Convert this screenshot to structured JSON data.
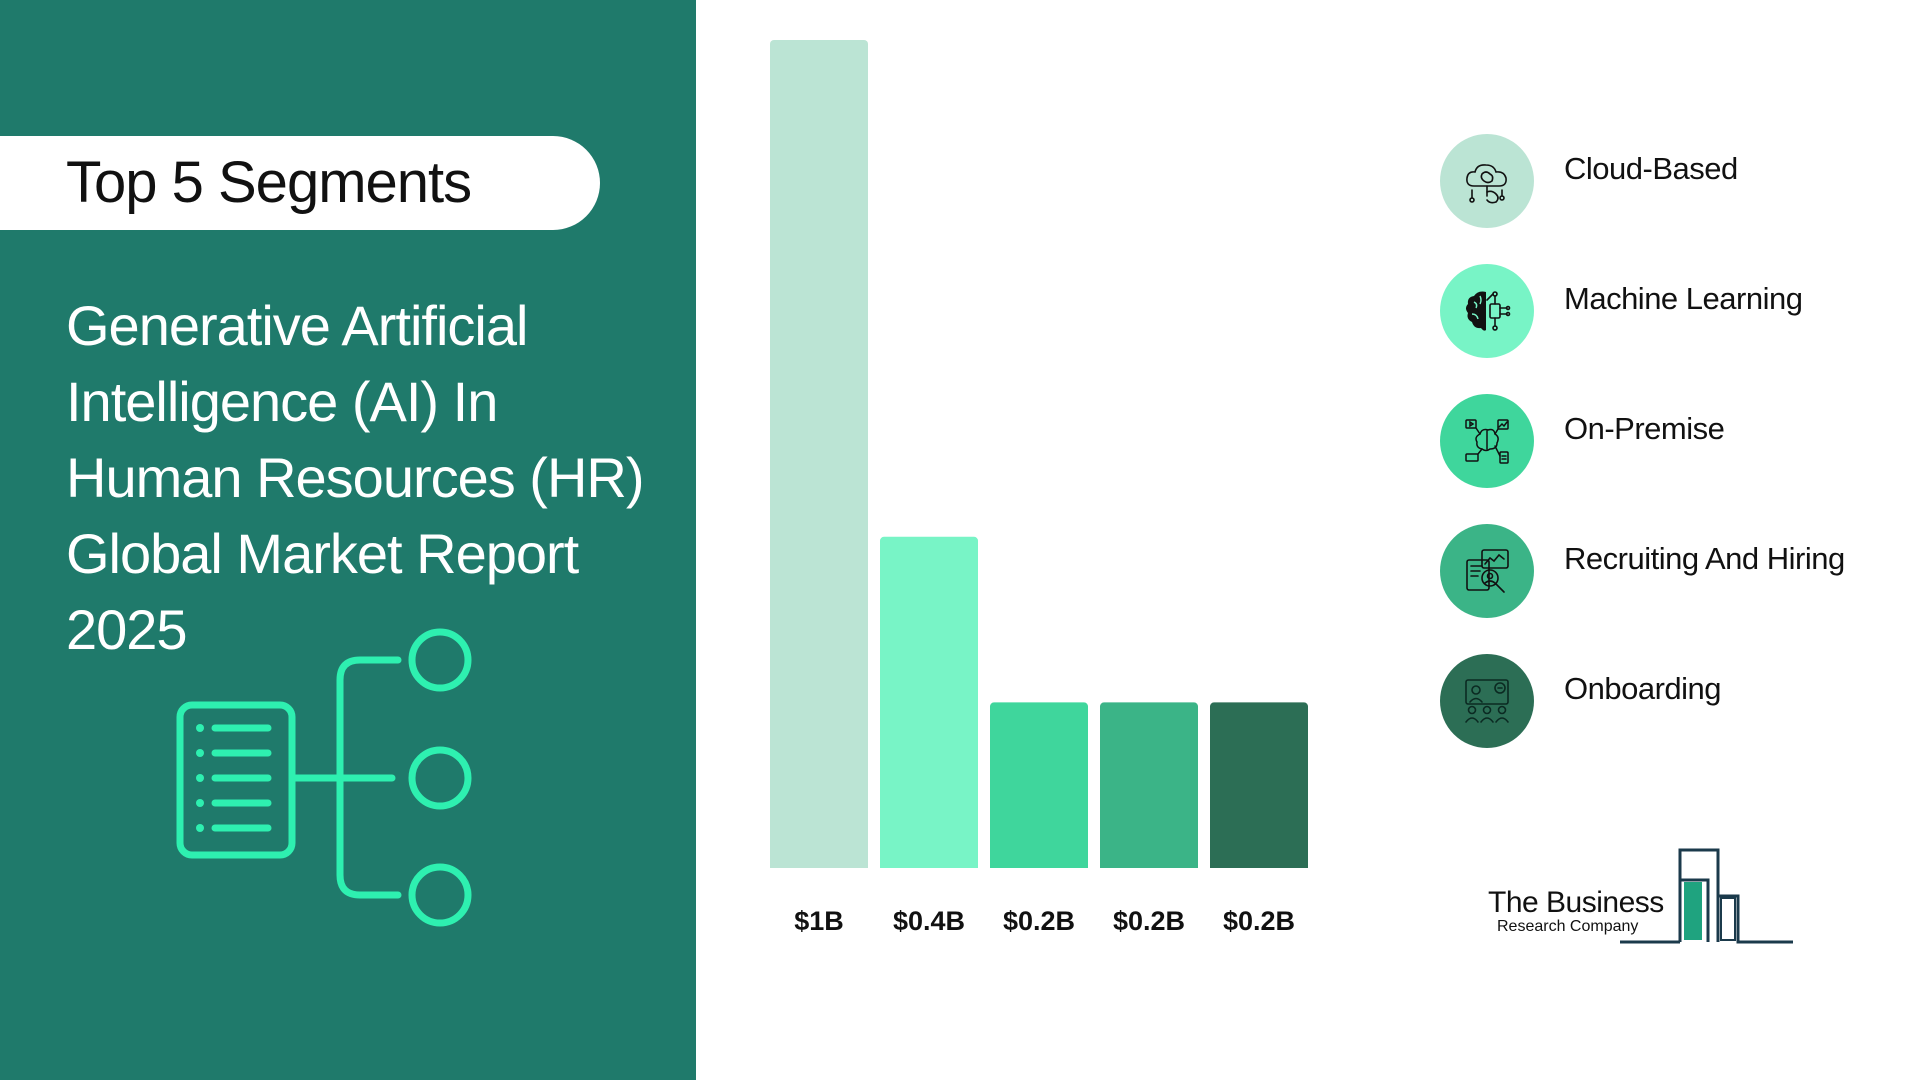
{
  "header": {
    "segments_label": "Top 5 Segments",
    "report_title_lines": [
      "Generative Artificial",
      "Intelligence (AI) In",
      "Human Resources (HR)",
      "Global Market Report",
      "2025"
    ]
  },
  "chart_data": {
    "type": "bar",
    "categories": [
      "Cloud-Based",
      "Machine Learning",
      "On-Premise",
      "Recruiting And Hiring",
      "Onboarding"
    ],
    "values": [
      1,
      0.4,
      0.2,
      0.2,
      0.2
    ],
    "data_labels": [
      "$1B",
      "$0.4B",
      "$0.2B",
      "$0.2B",
      "$0.2B"
    ],
    "colors": [
      "#bbe4d4",
      "#78f4c6",
      "#3fd69c",
      "#3bb487",
      "#2c6e55"
    ],
    "title": "",
    "xlabel": "",
    "ylabel": "",
    "ylim": [
      0,
      1
    ],
    "grid": false,
    "legend_position": "right"
  },
  "legend": [
    {
      "label": "Cloud-Based",
      "icon": "cloud-brain-icon",
      "color": "#bbe4d4"
    },
    {
      "label": "Machine Learning",
      "icon": "brain-chip-icon",
      "color": "#78f4c6"
    },
    {
      "label": "On-Premise",
      "icon": "brain-network-icon",
      "color": "#3fd69c"
    },
    {
      "label": "Recruiting And Hiring",
      "icon": "resume-search-icon",
      "color": "#3bb487"
    },
    {
      "label": "Onboarding",
      "icon": "team-presentation-icon",
      "color": "#2c6e55"
    }
  ],
  "brand": {
    "line1": "The Business",
    "line2": "Research Company"
  },
  "colors": {
    "panel": "#1f7a6b",
    "accent": "#2ef0b0"
  }
}
